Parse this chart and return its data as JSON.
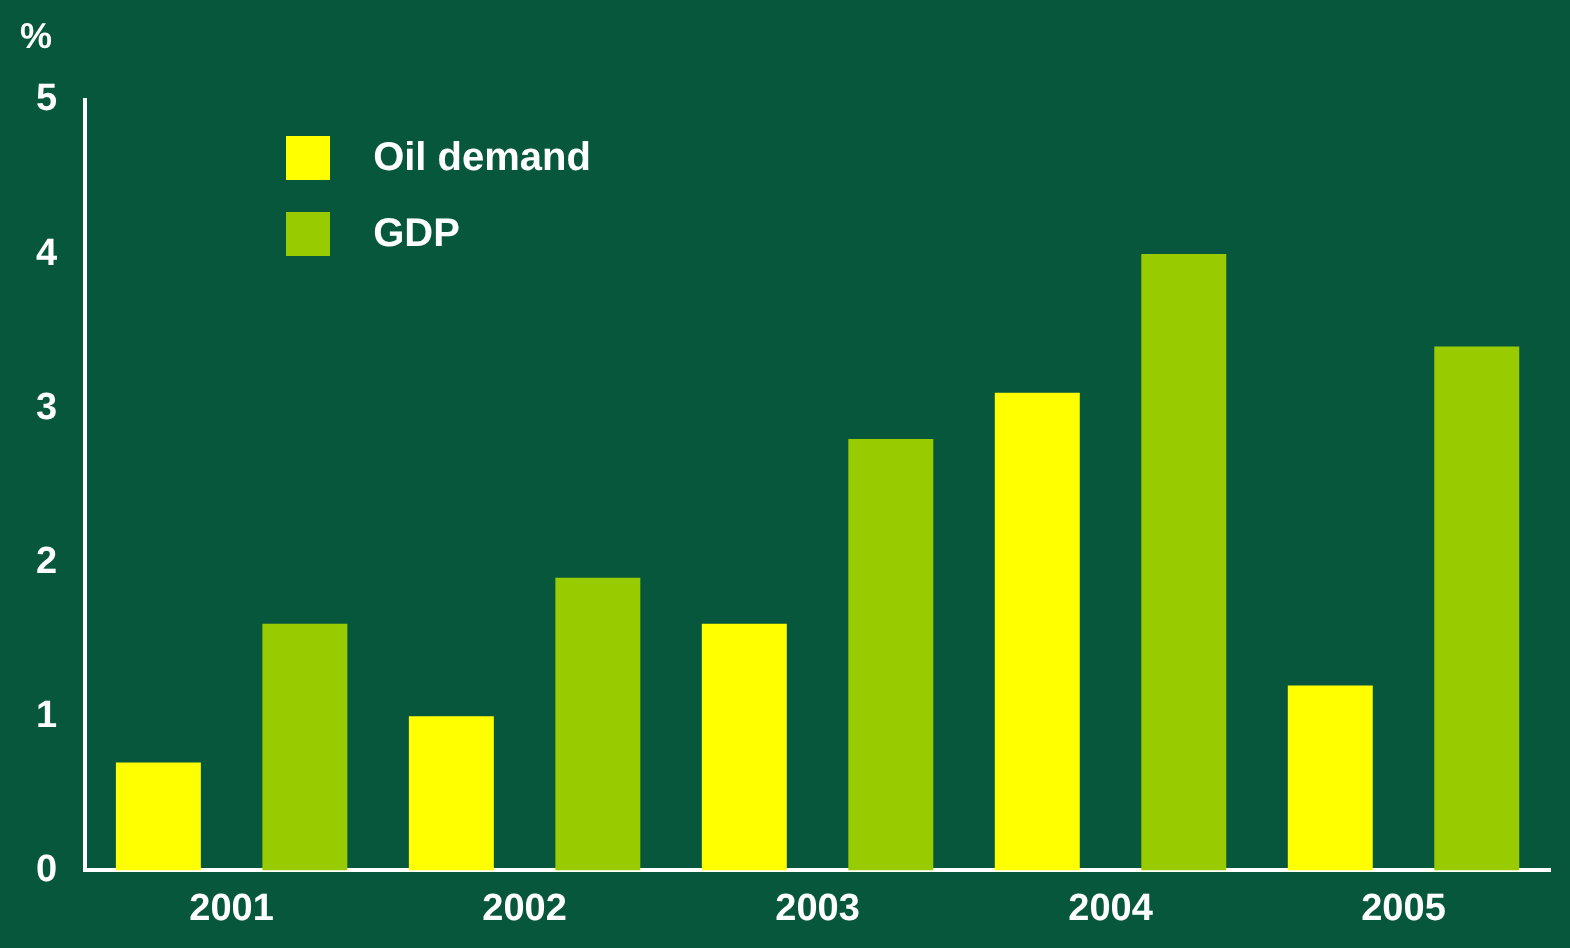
{
  "chart_data": {
    "type": "bar",
    "ylabel": "%",
    "categories": [
      "2001",
      "2002",
      "2003",
      "2004",
      "2005"
    ],
    "series": [
      {
        "name": "Oil demand",
        "color": "#ffff00",
        "values": [
          0.7,
          1.0,
          1.6,
          3.1,
          1.2
        ]
      },
      {
        "name": "GDP",
        "color": "#99cc00",
        "values": [
          1.6,
          1.9,
          2.8,
          4.0,
          3.4
        ]
      }
    ],
    "ylim": [
      0,
      5
    ],
    "yticks": [
      0,
      1,
      2,
      3,
      4,
      5
    ],
    "grid": false,
    "legend": "top left"
  }
}
